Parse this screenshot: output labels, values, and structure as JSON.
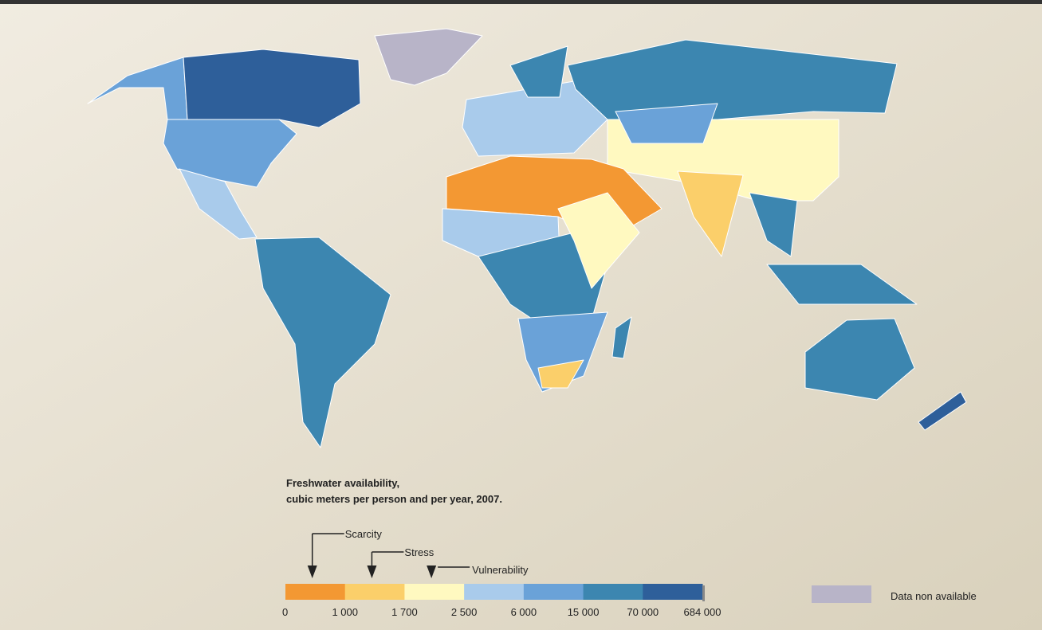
{
  "legend": {
    "title": [
      "Freshwater availability,",
      "cubic meters per person and per year, 2007."
    ],
    "breaks": [
      0,
      {
        "value": 1000,
        "label": "1 000"
      },
      {
        "value": 1700,
        "label": "1 700"
      },
      {
        "value": 2500,
        "label": "2 500"
      },
      {
        "value": 6000,
        "label": "6 000"
      },
      {
        "value": 15000,
        "label": "15 000"
      },
      {
        "value": 70000,
        "label": "70 000"
      },
      {
        "value": 684000,
        "label": "684 000"
      }
    ],
    "colors": [
      "#f39833",
      "#fbcf6a",
      "#fff9c0",
      "#a9cbeb",
      "#6aa2d8",
      "#3c86b0",
      "#2e5f9a"
    ],
    "annotations": [
      {
        "text": "Scarcity",
        "value": 1000
      },
      {
        "text": "Stress",
        "value": 1700
      },
      {
        "text": "Vulnerability",
        "value": 2500
      }
    ],
    "no_data": {
      "label": "Data non available",
      "color": "#b8b4c8"
    }
  }
}
